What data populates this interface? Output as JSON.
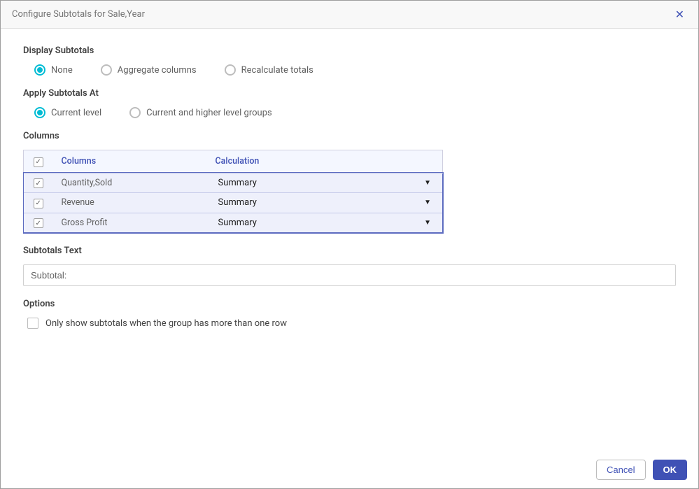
{
  "dialog": {
    "title": "Configure Subtotals for Sale,Year",
    "close_label": "✕"
  },
  "display_subtotals": {
    "label": "Display Subtotals",
    "options": [
      {
        "label": "None",
        "selected": true
      },
      {
        "label": "Aggregate columns",
        "selected": false
      },
      {
        "label": "Recalculate totals",
        "selected": false
      }
    ]
  },
  "apply_at": {
    "label": "Apply Subtotals At",
    "options": [
      {
        "label": "Current level",
        "selected": true
      },
      {
        "label": "Current and higher level groups",
        "selected": false
      }
    ]
  },
  "columns_section": {
    "label": "Columns",
    "header_columns": "Columns",
    "header_calc": "Calculation",
    "header_checked": true,
    "rows": [
      {
        "name": "Quantity,Sold",
        "calc": "Summary",
        "checked": true
      },
      {
        "name": "Revenue",
        "calc": "Summary",
        "checked": true
      },
      {
        "name": "Gross Profit",
        "calc": "Summary",
        "checked": true
      }
    ]
  },
  "subtotals_text": {
    "label": "Subtotals Text",
    "value": "Subtotal:"
  },
  "options_section": {
    "label": "Options",
    "only_show_label": "Only show subtotals when the group has more than one row",
    "only_show_checked": false
  },
  "footer": {
    "cancel": "Cancel",
    "ok": "OK"
  },
  "colors": {
    "accent_radio": "#00bcd4",
    "accent_primary": "#3f51b5",
    "row_bg": "#eef0fb",
    "header_bg": "#f4f7ff",
    "border": "#c5cae9"
  }
}
